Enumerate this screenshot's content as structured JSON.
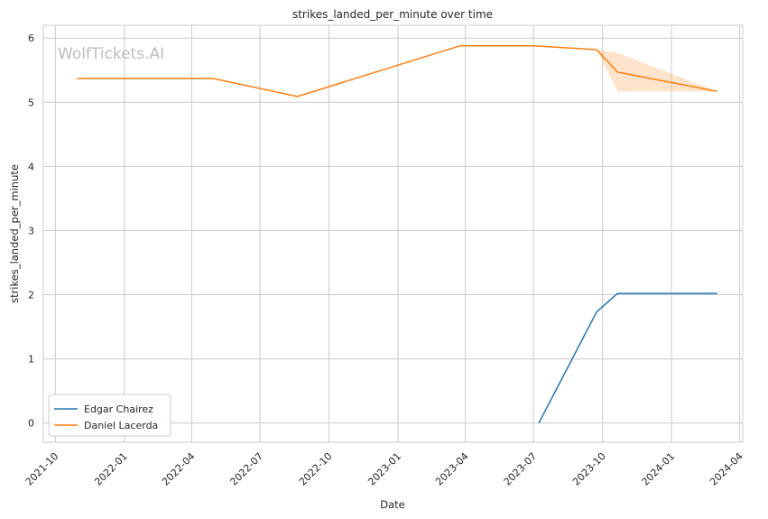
{
  "chart_data": {
    "type": "line",
    "title": "strikes_landed_per_minute over time",
    "xlabel": "Date",
    "ylabel": "strikes_landed_per_minute",
    "watermark": "WolfTickets.AI",
    "x_ticks": [
      "2021-10",
      "2022-01",
      "2022-04",
      "2022-07",
      "2022-10",
      "2023-01",
      "2023-04",
      "2023-07",
      "2023-10",
      "2024-01",
      "2024-04"
    ],
    "y_ticks": [
      0,
      1,
      2,
      3,
      4,
      5,
      6
    ],
    "ylim": [
      -0.3,
      6.2
    ],
    "xlim": [
      "2021-09-15",
      "2024-04-05"
    ],
    "grid": true,
    "legend_position": "lower-left",
    "series": [
      {
        "name": "Edgar Chairez",
        "color": "#1f77b4",
        "points": [
          {
            "x": "2023-07-08",
            "y": 0.0
          },
          {
            "x": "2023-09-23",
            "y": 1.73
          },
          {
            "x": "2023-10-21",
            "y": 2.02
          },
          {
            "x": "2024-03-02",
            "y": 2.02
          }
        ]
      },
      {
        "name": "Daniel Lacerda",
        "color": "#ff7f0e",
        "points": [
          {
            "x": "2021-10-30",
            "y": 5.37
          },
          {
            "x": "2022-04-30",
            "y": 5.37
          },
          {
            "x": "2022-08-20",
            "y": 5.09
          },
          {
            "x": "2023-03-25",
            "y": 5.88
          },
          {
            "x": "2023-07-01",
            "y": 5.88
          },
          {
            "x": "2023-09-23",
            "y": 5.82
          },
          {
            "x": "2023-10-21",
            "y": 5.47
          },
          {
            "x": "2024-03-02",
            "y": 5.17
          }
        ],
        "band": [
          {
            "x": "2023-09-23",
            "low": 5.82,
            "high": 5.82
          },
          {
            "x": "2023-10-21",
            "low": 5.17,
            "high": 5.77
          },
          {
            "x": "2024-03-02",
            "low": 5.17,
            "high": 5.17
          }
        ]
      }
    ]
  }
}
